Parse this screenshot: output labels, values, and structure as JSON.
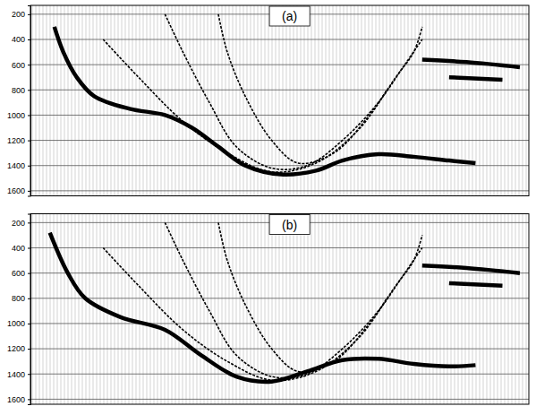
{
  "chart_data": [
    {
      "type": "line",
      "title": "(a)",
      "xlim": [
        0,
        100
      ],
      "ylim": [
        1640,
        130
      ],
      "yticks": [
        200,
        400,
        600,
        800,
        1000,
        1200,
        1400,
        1600
      ],
      "grid": true,
      "tick_labels": "y",
      "color": "#000000",
      "series": [
        {
          "line_style": "bold",
          "x": [
            4.8,
            6.6,
            9.3,
            12.8,
            19.9,
            27,
            32.4,
            37.7,
            43.1,
            50.2,
            57.3,
            62.6,
            69.8,
            76.9,
            84,
            89.3
          ],
          "values": [
            300,
            500,
            700,
            850,
            950,
            1000,
            1100,
            1250,
            1400,
            1470,
            1440,
            1360,
            1310,
            1330,
            1360,
            1380
          ]
        },
        {
          "line_style": "solid",
          "x": [
            27,
            30.6,
            35.9,
            41.3,
            48.4,
            55.5,
            62.6,
            69.8,
            75.1,
            78.6
          ],
          "values": [
            200,
            500,
            900,
            1250,
            1420,
            1400,
            1200,
            900,
            600,
            400
          ]
        },
        {
          "line_style": "solid",
          "x": [
            37.7,
            39.5,
            43.1,
            48.4,
            53.7,
            60.9,
            68,
            73.3,
            76.9,
            78.6
          ],
          "values": [
            200,
            500,
            850,
            1200,
            1380,
            1300,
            1000,
            700,
            500,
            300
          ]
        },
        {
          "line_style": "solid",
          "x": [
            14.6,
            21.7,
            30.6,
            39.5,
            48.4,
            57.3,
            66.2,
            71.5
          ],
          "values": [
            400,
            700,
            1050,
            1300,
            1450,
            1380,
            1100,
            800
          ]
        },
        {
          "line_style": "bold",
          "x": [
            78.6,
            87.5,
            98.2
          ],
          "values": [
            560,
            580,
            620
          ]
        },
        {
          "line_style": "bold",
          "x": [
            84,
            94.7
          ],
          "values": [
            700,
            720
          ]
        }
      ]
    },
    {
      "type": "line",
      "title": "(b)",
      "xlim": [
        0,
        100
      ],
      "ylim": [
        1640,
        130
      ],
      "yticks": [
        200,
        400,
        600,
        800,
        1000,
        1200,
        1400,
        1600
      ],
      "grid": true,
      "tick_labels": "y",
      "color": "#000000",
      "series": [
        {
          "line_style": "bold",
          "x": [
            3.9,
            7.5,
            11,
            18.1,
            27,
            34.2,
            41.3,
            48.4,
            55.5,
            62.6,
            69.8,
            76.9,
            84,
            89.3
          ],
          "values": [
            280,
            600,
            800,
            950,
            1050,
            1250,
            1420,
            1460,
            1380,
            1290,
            1280,
            1320,
            1340,
            1330
          ]
        },
        {
          "line_style": "solid",
          "x": [
            27,
            30.6,
            35.9,
            41.3,
            48.4,
            55.5,
            62.6,
            69.8,
            75.1,
            78.6
          ],
          "values": [
            200,
            500,
            900,
            1250,
            1420,
            1400,
            1200,
            900,
            600,
            400
          ]
        },
        {
          "line_style": "solid",
          "x": [
            37.7,
            39.5,
            43.1,
            48.4,
            53.7,
            60.9,
            68,
            73.3,
            76.9,
            78.6
          ],
          "values": [
            200,
            500,
            850,
            1200,
            1380,
            1300,
            1000,
            700,
            500,
            300
          ]
        },
        {
          "line_style": "solid",
          "x": [
            14.6,
            21.7,
            30.6,
            39.5,
            48.4,
            57.3,
            66.2,
            71.5
          ],
          "values": [
            400,
            700,
            1050,
            1300,
            1450,
            1380,
            1100,
            800
          ]
        },
        {
          "line_style": "bold",
          "x": [
            78.6,
            87.5,
            98.2
          ],
          "values": [
            540,
            560,
            600
          ]
        },
        {
          "line_style": "bold",
          "x": [
            84,
            94.7
          ],
          "values": [
            680,
            700
          ]
        }
      ]
    }
  ]
}
